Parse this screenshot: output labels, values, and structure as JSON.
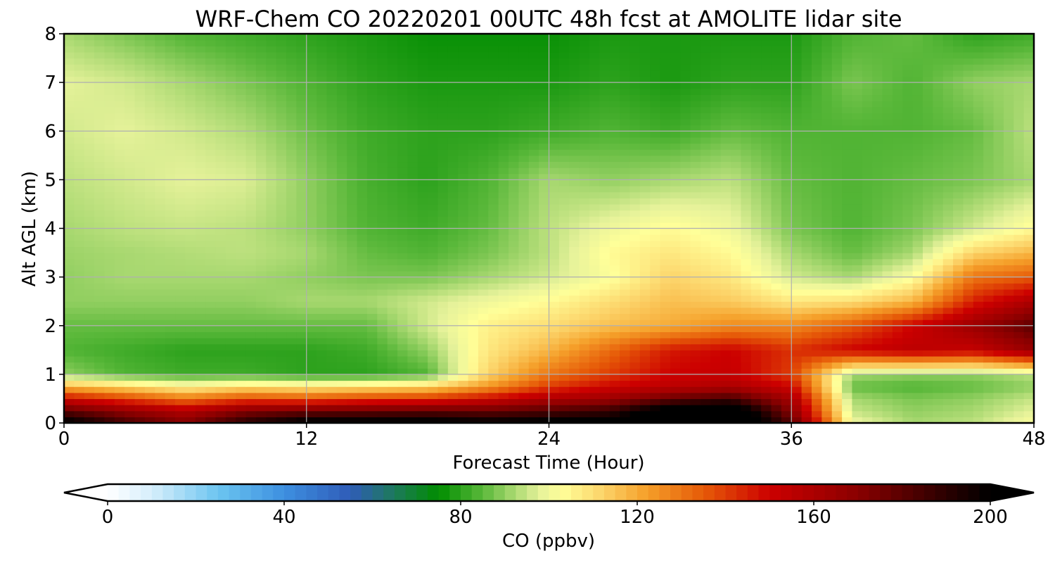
{
  "chart_data": {
    "type": "heatmap",
    "title": "WRF-Chem CO  20220201 00UTC 48h fcst at AMOLITE lidar site",
    "xlabel": "Forecast Time (Hour)",
    "ylabel": "Alt AGL (km)",
    "xlim": [
      0,
      48
    ],
    "ylim": [
      0,
      8
    ],
    "x_ticks": [
      "0",
      "12",
      "24",
      "36",
      "48"
    ],
    "y_ticks": [
      "0",
      "1",
      "2",
      "3",
      "4",
      "5",
      "6",
      "7",
      "8"
    ],
    "grid": true,
    "colorbar": {
      "label": "CO  (ppbv)",
      "range": [
        0,
        200
      ],
      "extend": "both",
      "ticks": [
        "0",
        "40",
        "80",
        "120",
        "160",
        "200"
      ]
    },
    "z_grid": {
      "x": [
        0,
        3,
        6,
        9,
        12,
        15,
        18,
        21,
        24,
        27,
        30,
        33,
        36,
        39,
        42,
        45,
        48
      ],
      "y": [
        0,
        0.25,
        0.5,
        0.75,
        1,
        1.5,
        2,
        2.5,
        3,
        3.5,
        4,
        5,
        6,
        7,
        8
      ],
      "values": [
        [
          205,
          185,
          172,
          192,
          205,
          205,
          205,
          202,
          205,
          205,
          212,
          222,
          182,
          100,
          92,
          94,
          102
        ],
        [
          180,
          168,
          158,
          172,
          176,
          178,
          180,
          178,
          182,
          188,
          210,
          215,
          170,
          95,
          90,
          92,
          98
        ],
        [
          150,
          140,
          130,
          138,
          136,
          140,
          142,
          150,
          160,
          165,
          178,
          185,
          162,
          92,
          88,
          90,
          95
        ],
        [
          118,
          112,
          105,
          110,
          108,
          110,
          112,
          124,
          140,
          150,
          155,
          160,
          150,
          86,
          84,
          86,
          90
        ],
        [
          90,
          84,
          82,
          82,
          80,
          80,
          84,
          112,
          130,
          140,
          150,
          152,
          140,
          92,
          90,
          90,
          94
        ],
        [
          84,
          82,
          80,
          80,
          80,
          82,
          90,
          108,
          118,
          132,
          146,
          150,
          142,
          150,
          155,
          152,
          166
        ],
        [
          86,
          86,
          86,
          86,
          86,
          86,
          96,
          106,
          110,
          116,
          120,
          126,
          126,
          135,
          150,
          165,
          180
        ],
        [
          90,
          90,
          90,
          90,
          92,
          92,
          96,
          100,
          104,
          110,
          116,
          114,
          108,
          110,
          118,
          145,
          160
        ],
        [
          90,
          92,
          92,
          92,
          90,
          88,
          88,
          92,
          96,
          102,
          112,
          108,
          96,
          92,
          102,
          130,
          135
        ],
        [
          91,
          92,
          93,
          94,
          92,
          86,
          84,
          88,
          94,
          104,
          108,
          104,
          92,
          86,
          92,
          112,
          118
        ],
        [
          92,
          94,
          95,
          94,
          90,
          84,
          82,
          86,
          94,
          100,
          104,
          100,
          88,
          84,
          88,
          96,
          104
        ],
        [
          94,
          96,
          98,
          97,
          90,
          83,
          80,
          84,
          92,
          90,
          92,
          94,
          86,
          84,
          86,
          88,
          92
        ],
        [
          96,
          98,
          96,
          93,
          87,
          82,
          80,
          80,
          82,
          84,
          82,
          86,
          84,
          84,
          84,
          86,
          94
        ],
        [
          98,
          96,
          92,
          88,
          84,
          80,
          78,
          78,
          78,
          80,
          78,
          80,
          80,
          88,
          84,
          90,
          92
        ],
        [
          92,
          88,
          84,
          82,
          80,
          78,
          76,
          76,
          76,
          78,
          78,
          78,
          78,
          84,
          86,
          80,
          82
        ]
      ]
    }
  }
}
